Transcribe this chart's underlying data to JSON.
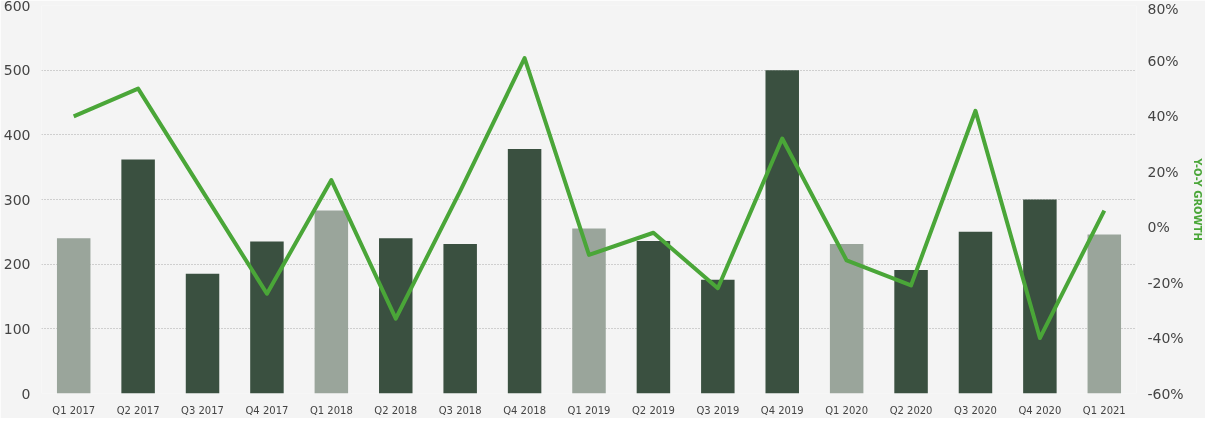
{
  "chart_data": {
    "type": "bar",
    "y2label": "Y-O-Y GROWTH",
    "categories": [
      "Q1 2017",
      "Q2 2017",
      "Q3 2017",
      "Q4 2017",
      "Q1 2018",
      "Q2 2018",
      "Q3 2018",
      "Q4 2018",
      "Q1 2019",
      "Q2 2019",
      "Q3 2019",
      "Q4 2019",
      "Q1 2020",
      "Q2 2020",
      "Q3 2020",
      "Q4 2020",
      "Q1 2021"
    ],
    "series": [
      {
        "values": [
          240,
          362,
          185,
          235,
          283,
          240,
          231,
          378,
          255,
          236,
          176,
          500,
          231,
          191,
          250,
          300,
          246
        ],
        "colors": [
          "#9aa59b",
          "#3a5040",
          "#3a5040",
          "#3a5040",
          "#9aa59b",
          "#3a5040",
          "#3a5040",
          "#3a5040",
          "#9aa59b",
          "#3a5040",
          "#3a5040",
          "#3a5040",
          "#9aa59b",
          "#3a5040",
          "#3a5040",
          "#3a5040",
          "#9aa59b"
        ]
      },
      {
        "type": "line",
        "axis": "y2",
        "color": "#4aa638",
        "values": [
          40,
          50,
          13,
          -24,
          17,
          -33,
          13,
          61,
          -10,
          -2,
          -22,
          32,
          -12,
          -21,
          42,
          -40,
          6
        ]
      }
    ],
    "ylim": [
      0,
      600
    ],
    "yticks": [
      0,
      100,
      200,
      300,
      400,
      500,
      600
    ],
    "y2lim": [
      -60,
      80
    ],
    "y2ticks": [
      {
        "value": -60,
        "label": "-60%"
      },
      {
        "value": -40,
        "label": "-40%"
      },
      {
        "value": -20,
        "label": "-20%"
      },
      {
        "value": 0,
        "label": "0%"
      },
      {
        "value": 20,
        "label": "20%"
      },
      {
        "value": 40,
        "label": "40%"
      },
      {
        "value": 60,
        "label": "60%"
      },
      {
        "value": 80,
        "label": "80%"
      }
    ],
    "grid": "y",
    "line_style": "solid"
  }
}
